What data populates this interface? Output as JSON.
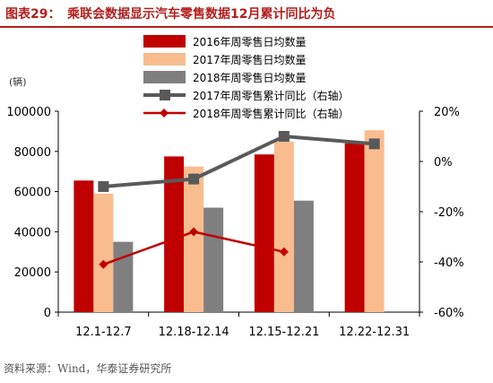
{
  "header": {
    "label": "图表29：",
    "title": "乘联会数据显示汽车零售数据12月累计同比为负"
  },
  "source": "资料来源：Wind，华泰证券研究所",
  "colors": {
    "bar2016": "#c00000",
    "bar2017": "#f9bc8f",
    "bar2018": "#7f7f7f",
    "line2017": "#595959",
    "line2018": "#c00000",
    "title": "#b21f1f"
  },
  "chart_data": {
    "type": "bar",
    "unit_label": "(辆)",
    "categories": [
      "12.1-12.7",
      "12.18-12.14",
      "12.15-12.21",
      "12.22-12.31"
    ],
    "series": [
      {
        "name": "2016年周零售日均数量",
        "kind": "bar",
        "axis": "left",
        "values": [
          65500,
          77500,
          78500,
          84000
        ]
      },
      {
        "name": "2017年周零售日均数量",
        "kind": "bar",
        "axis": "left",
        "values": [
          59000,
          72500,
          85000,
          90500
        ]
      },
      {
        "name": "2018年周零售日均数量",
        "kind": "bar",
        "axis": "left",
        "values": [
          35000,
          52000,
          55500,
          null
        ]
      },
      {
        "name": "2017年周零售累计同比（右轴）",
        "kind": "line",
        "axis": "right",
        "values": [
          -10,
          -7,
          10,
          7
        ]
      },
      {
        "name": "2018年周零售累计同比（右轴）",
        "kind": "line",
        "axis": "right",
        "values": [
          -41,
          -28,
          -36,
          null
        ]
      }
    ],
    "left_axis": {
      "min": 0,
      "max": 100000,
      "ticks": [
        0,
        20000,
        40000,
        60000,
        80000,
        100000
      ],
      "tick_labels": [
        "0",
        "20000",
        "40000",
        "60000",
        "80000",
        "100000"
      ]
    },
    "right_axis": {
      "min": -60,
      "max": 20,
      "ticks": [
        -60,
        -40,
        -20,
        0,
        20
      ],
      "tick_labels": [
        "-60%",
        "-40%",
        "-20%",
        "0%",
        "20%"
      ]
    },
    "legend_position": "top-center",
    "grid": false
  }
}
